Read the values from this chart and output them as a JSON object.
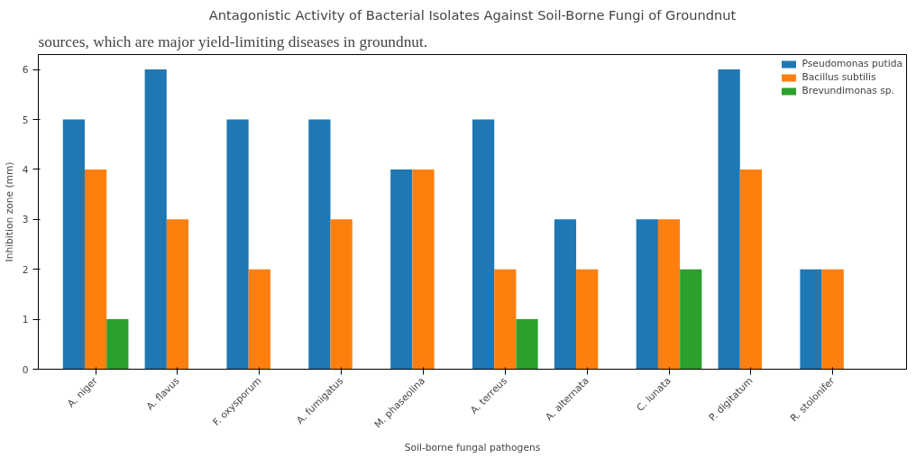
{
  "chart_data": {
    "type": "bar",
    "title": "Antagonistic Activity of Bacterial Isolates Against Soil-Borne Fungi of Groundnut",
    "xlabel": "Soil-borne fungal pathogens",
    "ylabel": "Inhibition zone (mm)",
    "annotations": [
      "sources, which are major yield-limiting diseases in groundnut."
    ],
    "categories": [
      "A. niger",
      "A. flavus",
      "F. oxysporum",
      "A. fumigatus",
      "M. phaseolina",
      "A. terreus",
      "A. alternata",
      "C. lunata",
      "P. digitatum",
      "R. stolonifer"
    ],
    "series": [
      {
        "name": "Pseudomonas putida",
        "color": "#1f77b4",
        "values": [
          5,
          6,
          5,
          5,
          4,
          5,
          3,
          3,
          6,
          2
        ]
      },
      {
        "name": "Bacillus subtilis",
        "color": "#ff7f0e",
        "values": [
          4,
          3,
          2,
          3,
          4,
          2,
          2,
          3,
          4,
          2
        ]
      },
      {
        "name": "Brevundimonas sp.",
        "color": "#2ca02c",
        "values": [
          1,
          0,
          0,
          0,
          0,
          1,
          0,
          2,
          0,
          0
        ]
      }
    ],
    "ylim": [
      0,
      6.3
    ],
    "yticks": [
      0,
      1,
      2,
      3,
      4,
      5,
      6
    ],
    "grid": false,
    "legend": "top right"
  }
}
